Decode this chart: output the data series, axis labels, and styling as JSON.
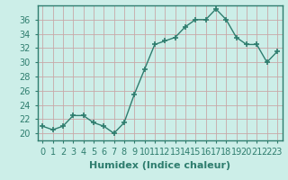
{
  "x": [
    0,
    1,
    2,
    3,
    4,
    5,
    6,
    7,
    8,
    9,
    10,
    11,
    12,
    13,
    14,
    15,
    16,
    17,
    18,
    19,
    20,
    21,
    22,
    23
  ],
  "y": [
    21,
    20.5,
    21,
    22.5,
    22.5,
    21.5,
    21,
    20,
    21.5,
    25.5,
    29,
    32.5,
    33,
    33.5,
    35,
    36,
    36,
    37.5,
    36,
    33.5,
    32.5,
    32.5,
    30,
    31.5
  ],
  "line_color": "#2e7d6e",
  "marker": "+",
  "marker_size": 5,
  "bg_color": "#cceee8",
  "grid_color": "#c8a8a8",
  "xlabel": "Humidex (Indice chaleur)",
  "xlim": [
    -0.5,
    23.5
  ],
  "ylim": [
    19,
    38
  ],
  "yticks": [
    20,
    22,
    24,
    26,
    28,
    30,
    32,
    34,
    36
  ],
  "xtick_labels": [
    "0",
    "1",
    "2",
    "3",
    "4",
    "5",
    "6",
    "7",
    "8",
    "9",
    "10",
    "11",
    "12",
    "13",
    "14",
    "15",
    "16",
    "17",
    "18",
    "19",
    "20",
    "21",
    "22",
    "23"
  ],
  "xlabel_fontsize": 8,
  "tick_fontsize": 7,
  "spine_color": "#2e7d6e"
}
